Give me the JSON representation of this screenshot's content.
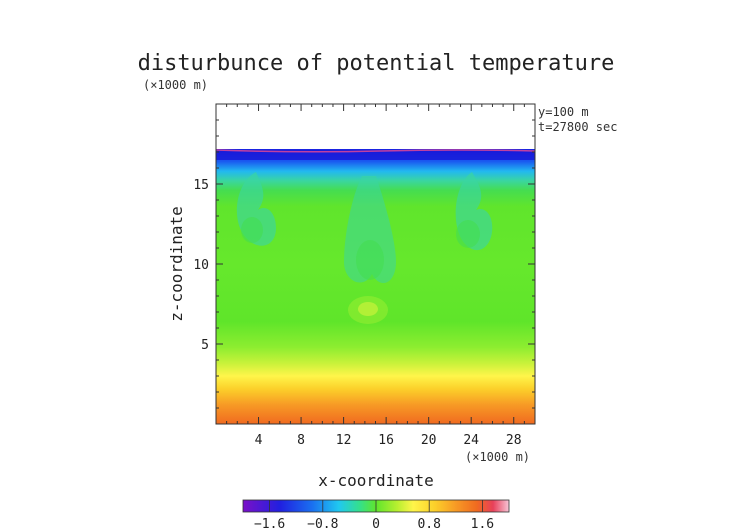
{
  "chart_data": {
    "type": "heatmap",
    "title": "disturbunce of potential temperature",
    "y_unit": "(×1000 m)",
    "x_unit": "(×1000 m)",
    "xlabel": "x-coordinate",
    "ylabel": "z-coordinate",
    "annotations": [
      "y=100 m",
      "t=27800 sec"
    ],
    "xlim": [
      0,
      30
    ],
    "ylim": [
      0,
      20
    ],
    "x_ticks": [
      4,
      8,
      12,
      16,
      20,
      24,
      28
    ],
    "y_ticks": [
      5,
      10,
      15
    ],
    "top_of_data_z": 17.2,
    "colorbar": {
      "range": [
        -2.0,
        2.0
      ],
      "tick_values": [
        -1.6,
        -0.8,
        0,
        0.8,
        1.6
      ],
      "tick_labels": [
        "−1.6",
        "−0.8",
        "0",
        "0.8",
        "1.6"
      ]
    }
  }
}
